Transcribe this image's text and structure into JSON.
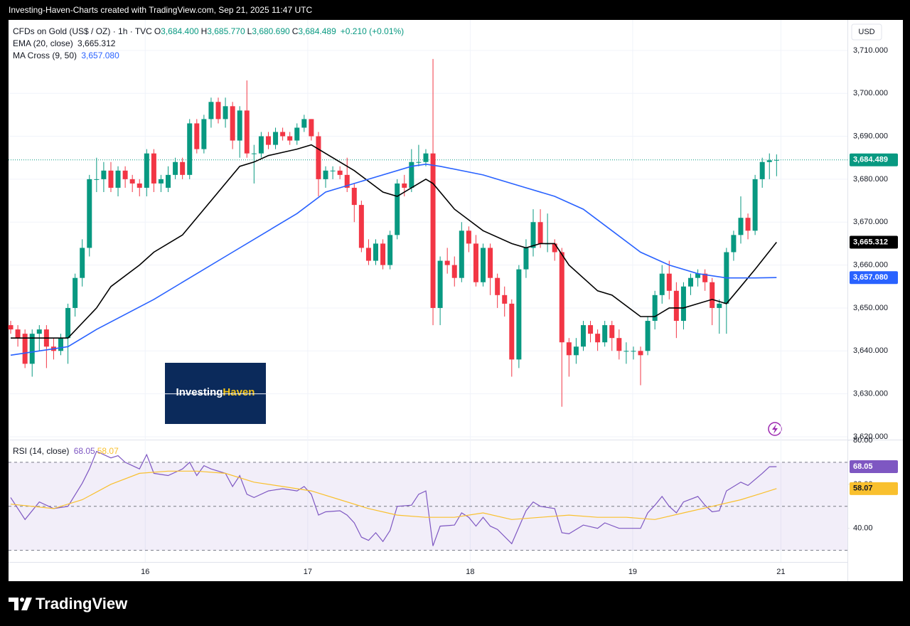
{
  "header": "Investing-Haven-Charts created with TradingView.com, Sep 21, 2025 11:47 UTC",
  "footer": "TradingView",
  "watermark": {
    "first": "Investing",
    "second": "Haven"
  },
  "chart_data": [
    {
      "type": "candlestick",
      "title": "CFDs on Gold (US$ / OZ) · 1h · TVC",
      "ohlc_legend": [
        {
          "label": "O",
          "value": "3,684.400"
        },
        {
          "label": "H",
          "value": "3,685.770"
        },
        {
          "label": "L",
          "value": "3,680.690"
        },
        {
          "label": "C",
          "value": "3,684.489"
        }
      ],
      "change": "+0.210 (+0.01%)",
      "currency": "USD",
      "xlim": [
        -0.3,
        116.9
      ],
      "xticks": [
        {
          "value": 18.8,
          "label": "16"
        },
        {
          "value": 41.5,
          "label": "17"
        },
        {
          "value": 64.2,
          "label": "18"
        },
        {
          "value": 86.9,
          "label": "19"
        },
        {
          "value": 107.6,
          "label": "21"
        }
      ],
      "ylim": [
        3619.5,
        3717.1
      ],
      "yticks": [
        {
          "value": 3620,
          "label": "3,620.000"
        },
        {
          "value": 3630,
          "label": "3,630.000"
        },
        {
          "value": 3640,
          "label": "3,640.000"
        },
        {
          "value": 3650,
          "label": "3,650.000"
        },
        {
          "value": 3660,
          "label": "3,660.000"
        },
        {
          "value": 3670,
          "label": "3,670.000"
        },
        {
          "value": 3680,
          "label": "3,680.000"
        },
        {
          "value": 3690,
          "label": "3,690.000"
        },
        {
          "value": 3700,
          "label": "3,700.000"
        },
        {
          "value": 3710,
          "label": "3,710.000"
        }
      ],
      "grid": true,
      "up_color": "#089981",
      "down_color": "#f23645",
      "last_label": "3,684.489",
      "open": [
        3646,
        3645,
        3644,
        3637,
        3644,
        3645,
        3641,
        3640,
        3643,
        3650,
        3657,
        3664,
        3680,
        3680,
        3682,
        3678,
        3682,
        3680,
        3679,
        3678,
        3686,
        3679,
        3678,
        3681,
        3684,
        3681,
        3693,
        3687,
        3694,
        3698,
        3694,
        3697,
        3689,
        3696,
        3686,
        3686,
        3690,
        3688,
        3691,
        3690,
        3689,
        3692,
        3694,
        3690,
        3680,
        3682,
        3682,
        3681,
        3678,
        3674,
        3664,
        3661,
        3665,
        3660,
        3667,
        3679,
        3678,
        3684,
        3684,
        3686,
        3650,
        3661,
        3660,
        3657,
        3668,
        3665,
        3656,
        3664,
        3657,
        3653,
        3651,
        3638,
        3659,
        3664,
        3670,
        3665,
        3665,
        3663,
        3642,
        3639,
        3641,
        3646,
        3644,
        3642,
        3646,
        3643,
        3640,
        3640,
        3640,
        3640,
        3647,
        3653,
        3658,
        3654,
        3647,
        3655,
        3657,
        3658,
        3656,
        3650,
        3651,
        3663,
        3667,
        3671,
        3668,
        3680,
        3684,
        3684.4
      ],
      "high": [
        3647,
        3646,
        3645,
        3645,
        3646,
        3646,
        3643,
        3644,
        3651,
        3658,
        3666,
        3681,
        3685,
        3684,
        3684,
        3683,
        3683,
        3681,
        3680,
        3687,
        3687,
        3681,
        3683,
        3685,
        3685,
        3694,
        3694,
        3695,
        3699,
        3699,
        3699,
        3698,
        3697,
        3703,
        3688,
        3691,
        3691,
        3692,
        3692,
        3691,
        3693,
        3695,
        3694,
        3691,
        3683,
        3683,
        3683,
        3685,
        3679,
        3675,
        3666,
        3666,
        3666,
        3668,
        3680,
        3681,
        3687,
        3688,
        3687,
        3708,
        3662,
        3664,
        3662,
        3670,
        3669,
        3667,
        3665,
        3665,
        3658,
        3655,
        3652,
        3660,
        3666,
        3673,
        3673,
        3672,
        3666,
        3664,
        3643,
        3643,
        3647,
        3647,
        3645,
        3647,
        3647,
        3645,
        3642,
        3641,
        3641,
        3648,
        3654,
        3660,
        3661,
        3656,
        3656,
        3658,
        3659,
        3659,
        3657,
        3652,
        3664,
        3668,
        3676,
        3672,
        3681,
        3685,
        3686,
        3685.77
      ],
      "low": [
        3644,
        3641,
        3636,
        3634,
        3640,
        3636,
        3638,
        3639,
        3637,
        3648,
        3655,
        3662,
        3677,
        3677,
        3677,
        3676,
        3678,
        3677,
        3676,
        3676,
        3677,
        3677,
        3677,
        3680,
        3680,
        3680,
        3686,
        3686,
        3692,
        3693,
        3692,
        3687,
        3685,
        3685,
        3679,
        3685,
        3687,
        3687,
        3689,
        3688,
        3688,
        3691,
        3689,
        3676,
        3678,
        3680,
        3680,
        3677,
        3670,
        3663,
        3660,
        3660,
        3659,
        3659,
        3666,
        3676,
        3677,
        3683,
        3683,
        3646,
        3646,
        3658,
        3655,
        3656,
        3663,
        3655,
        3655,
        3653,
        3650,
        3648,
        3634,
        3636,
        3657,
        3662,
        3664,
        3663,
        3661,
        3627,
        3634,
        3637,
        3640,
        3642,
        3640,
        3641,
        3640,
        3638,
        3637,
        3638,
        3632,
        3639,
        3645,
        3651,
        3652,
        3643,
        3645,
        3653,
        3655,
        3654,
        3646,
        3644,
        3644,
        3661,
        3665,
        3666,
        3667,
        3678,
        3680,
        3680.69
      ],
      "close": [
        3645,
        3643,
        3637,
        3644,
        3645,
        3641,
        3640,
        3643,
        3650,
        3657,
        3664,
        3680,
        3680,
        3682,
        3678,
        3682,
        3680,
        3679,
        3678,
        3686,
        3679,
        3680,
        3681,
        3684,
        3681,
        3693,
        3687,
        3694,
        3698,
        3694,
        3697,
        3689,
        3696,
        3686,
        3686,
        3690,
        3688,
        3691,
        3690,
        3689,
        3692,
        3694,
        3690,
        3680,
        3682,
        3682,
        3681,
        3678,
        3674,
        3664,
        3661,
        3665,
        3660,
        3667,
        3679,
        3678,
        3684,
        3684,
        3686,
        3650,
        3661,
        3660,
        3657,
        3668,
        3665,
        3656,
        3664,
        3657,
        3653,
        3651,
        3638,
        3659,
        3664,
        3670,
        3665,
        3665,
        3663,
        3642,
        3639,
        3641,
        3646,
        3644,
        3642,
        3646,
        3643,
        3640,
        3640,
        3640,
        3639,
        3647,
        3653,
        3658,
        3654,
        3647,
        3655,
        3657,
        3658,
        3656,
        3650,
        3651,
        3663,
        3667,
        3671,
        3668,
        3680,
        3684,
        3684.4,
        3684.489
      ],
      "lines": [
        {
          "name": "EMA (20, close)",
          "color": "#000000",
          "last_label": "3,665.312",
          "x": [
            0,
            8,
            12,
            14,
            18,
            20,
            24,
            28,
            32,
            34,
            36,
            40,
            42,
            44,
            48,
            52,
            54,
            58,
            59,
            62,
            66,
            70,
            72,
            74,
            76,
            78,
            82,
            84,
            88,
            90,
            92,
            94,
            96,
            98,
            100,
            102,
            104,
            107
          ],
          "values": [
            3643,
            3643,
            3650,
            3655,
            3660,
            3663,
            3667,
            3675,
            3683,
            3684,
            3685.5,
            3687,
            3688,
            3686,
            3682,
            3677,
            3676,
            3680,
            3679,
            3673,
            3668,
            3665,
            3664,
            3665,
            3665,
            3660,
            3654,
            3653,
            3648,
            3648,
            3650,
            3650,
            3651,
            3652,
            3651,
            3655,
            3659,
            3665.312
          ]
        },
        {
          "name": "MA Cross (9, 50)",
          "color": "#2962ff",
          "last_label": "3,657.080",
          "x": [
            0,
            8,
            12,
            20,
            30,
            40,
            44,
            50,
            56,
            58,
            60,
            66,
            72,
            76,
            80,
            84,
            88,
            92,
            96,
            100,
            104,
            107
          ],
          "values": [
            3639,
            3641,
            3645,
            3652,
            3662,
            3672,
            3677,
            3680,
            3683,
            3683.5,
            3683,
            3681,
            3678,
            3676,
            3673,
            3668,
            3663,
            3660,
            3658,
            3657,
            3657,
            3657.08
          ]
        }
      ]
    },
    {
      "type": "line",
      "title": "RSI (14, close)",
      "xlim": [
        -0.3,
        116.9
      ],
      "ylim": [
        24.7,
        80
      ],
      "yticks": [
        {
          "value": 80,
          "label": "80.00"
        },
        {
          "value": 60,
          "label": "60.00"
        },
        {
          "value": 40,
          "label": "40.00"
        }
      ],
      "bands": [
        70,
        50,
        30
      ],
      "band_color": "#7e57c2",
      "series": [
        {
          "color": "#7e57c2",
          "last_label": "68.05",
          "x": [
            0,
            2,
            4,
            6,
            8,
            10,
            11,
            12,
            14,
            15,
            16,
            17,
            18,
            19,
            20,
            22,
            24,
            25,
            26,
            27,
            28,
            30,
            31,
            32,
            33,
            34,
            36,
            38,
            40,
            41,
            42,
            43,
            44,
            46,
            47,
            48,
            49,
            50,
            51,
            52,
            53,
            54,
            56,
            57,
            58,
            59,
            60,
            62,
            63,
            64,
            65,
            66,
            67,
            68,
            70,
            72,
            73,
            74,
            76,
            77,
            78,
            80,
            82,
            83,
            85,
            88,
            89,
            90,
            91,
            92,
            93,
            94,
            96,
            97,
            98,
            99,
            100,
            102,
            103,
            105,
            106,
            107
          ],
          "values": [
            54,
            44,
            52,
            49,
            50,
            60.5,
            67,
            75,
            72,
            73,
            70,
            68.5,
            67,
            73.5,
            65,
            64,
            67,
            70,
            64,
            68.5,
            67,
            65,
            59,
            64,
            55.5,
            54,
            57,
            58,
            57,
            59,
            55.5,
            46,
            47.5,
            48,
            46,
            42.5,
            36,
            34.5,
            38,
            34,
            39,
            50,
            50.5,
            55.5,
            57,
            32,
            41,
            41.5,
            47,
            45,
            41,
            45,
            41,
            39.5,
            33,
            48,
            52,
            50,
            49,
            38,
            37.5,
            41.5,
            40,
            42.5,
            40,
            40,
            47,
            50.5,
            54.5,
            50,
            47,
            52,
            54.5,
            50.5,
            47.5,
            48,
            57,
            61,
            59.5,
            65,
            68,
            68.05
          ]
        },
        {
          "color": "#f9c02e",
          "last_label": "58.07",
          "x": [
            0,
            6,
            10,
            14,
            18,
            22,
            26,
            30,
            34,
            38,
            42,
            46,
            50,
            54,
            58,
            62,
            66,
            70,
            74,
            78,
            82,
            86,
            90,
            94,
            98,
            102,
            105,
            107
          ],
          "values": [
            51,
            49,
            53,
            60,
            65,
            66,
            66,
            65,
            61,
            59,
            57,
            53,
            49,
            46,
            45,
            45,
            47,
            44,
            45,
            46,
            45,
            45,
            44,
            47,
            50,
            53,
            56,
            58.07
          ]
        }
      ]
    }
  ]
}
